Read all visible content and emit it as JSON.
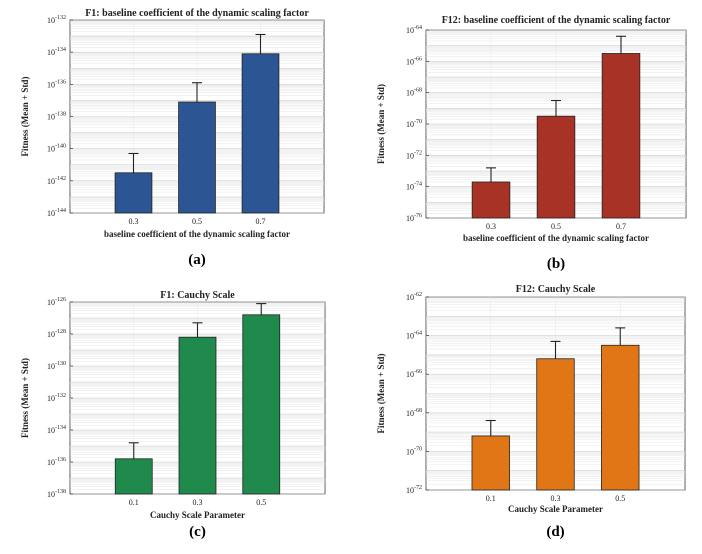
{
  "figure": {
    "panels": [
      {
        "label": "(a)",
        "color": "#2b5593",
        "chart_data": {
          "type": "bar",
          "title": "F1: baseline coefficient of the dynamic scaling factor",
          "xlabel": "baseline coefficient of the dynamic scaling factor",
          "ylabel": "Fitness (Mean + Std)",
          "yscale": "log",
          "ylim_exp": [
            -144,
            -132
          ],
          "ytick_exps": [
            -144,
            -142,
            -140,
            -138,
            -136,
            -134,
            -132
          ],
          "categories": [
            "0.3",
            "0.5",
            "0.7"
          ],
          "values_exp": [
            -141.5,
            -137.1,
            -134.1
          ],
          "error_top_exp": [
            -140.3,
            -135.9,
            -132.9
          ],
          "grid": true
        }
      },
      {
        "label": "(b)",
        "color": "#a93226",
        "chart_data": {
          "type": "bar",
          "title": "F12: baseline coefficient of the dynamic scaling factor",
          "xlabel": "baseline coefficient of the dynamic scaling factor",
          "ylabel": "Fitness (Mean + Std)",
          "yscale": "log",
          "ylim_exp": [
            -76,
            -64
          ],
          "ytick_exps": [
            -76,
            -74,
            -72,
            -70,
            -68,
            -66,
            -64
          ],
          "categories": [
            "0.3",
            "0.5",
            "0.7"
          ],
          "values_exp": [
            -73.7,
            -69.5,
            -65.5
          ],
          "error_top_exp": [
            -72.8,
            -68.5,
            -64.4
          ],
          "grid": true
        }
      },
      {
        "label": "(c)",
        "color": "#208a4d",
        "chart_data": {
          "type": "bar",
          "title": "F1: Cauchy Scale",
          "xlabel": "Cauchy Scale Parameter",
          "ylabel": "Fitness (Mean + Std)",
          "yscale": "log",
          "ylim_exp": [
            -138,
            -126
          ],
          "ytick_exps": [
            -138,
            -136,
            -134,
            -132,
            -130,
            -128,
            -126
          ],
          "categories": [
            "0.1",
            "0.3",
            "0.5"
          ],
          "values_exp": [
            -135.8,
            -128.2,
            -126.8
          ],
          "error_top_exp": [
            -134.8,
            -127.3,
            -126.1
          ],
          "grid": true
        }
      },
      {
        "label": "(d)",
        "color": "#e07616",
        "chart_data": {
          "type": "bar",
          "title": "F12: Cauchy Scale",
          "xlabel": "Cauchy Scale Parameter",
          "ylabel": "Fitness (Mean + Std)",
          "yscale": "log",
          "ylim_exp": [
            -72,
            -62
          ],
          "ytick_exps": [
            -72,
            -70,
            -68,
            -66,
            -64,
            -62
          ],
          "categories": [
            "0.1",
            "0.3",
            "0.5"
          ],
          "values_exp": [
            -69.2,
            -65.2,
            -64.5
          ],
          "error_top_exp": [
            -68.4,
            -64.3,
            -63.6
          ],
          "grid": true
        }
      }
    ]
  }
}
